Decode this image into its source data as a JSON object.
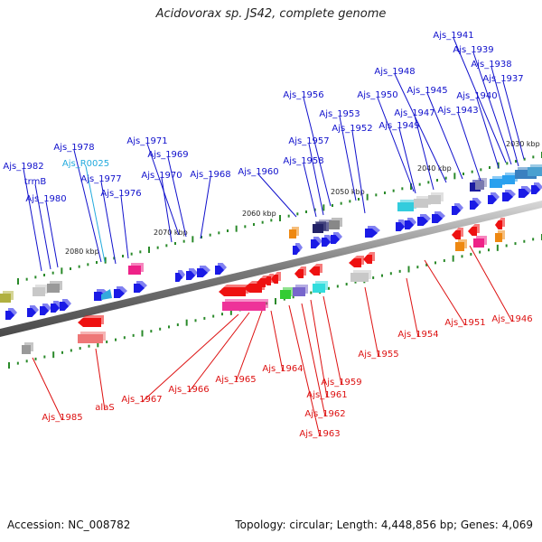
{
  "title": "Acidovorax sp. JS42, complete genome",
  "footer": {
    "accession": "Accession: NC_008782",
    "summary": "Topology: circular; Length: 4,448,856 bp; Genes: 4,069"
  },
  "colors": {
    "forward_label": "#1010cc",
    "reverse_label": "#dd1111",
    "rna_label": "#22aadd",
    "backbone": "#888888",
    "tick": "#2a8a2a"
  },
  "ruler": {
    "unit": "kbp",
    "ticks": [
      {
        "label": "2030 kbp"
      },
      {
        "label": "2040 kbp"
      },
      {
        "label": "2050 kbp"
      },
      {
        "label": "2060 kbp"
      },
      {
        "label": "2070 kbp"
      },
      {
        "label": "2080 kbp"
      }
    ]
  },
  "forward_labels": [
    "Ajs_1941",
    "Ajs_1939",
    "Ajs_1938",
    "Ajs_1937",
    "Ajs_1948",
    "Ajs_1945",
    "Ajs_1940",
    "Ajs_1956",
    "Ajs_1950",
    "Ajs_1947",
    "Ajs_1943",
    "Ajs_1953",
    "Ajs_1949",
    "Ajs_1952",
    "Ajs_1957",
    "Ajs_1958",
    "Ajs_1960",
    "Ajs_1971",
    "Ajs_1969",
    "Ajs_1970",
    "Ajs_1968",
    "Ajs_1978",
    "Ajs_1977",
    "Ajs_1976",
    "Ajs_1982",
    "trmB",
    "Ajs_1980"
  ],
  "rna_labels": [
    "Ajs_R0025"
  ],
  "reverse_labels": [
    "Ajs_1946",
    "Ajs_1951",
    "Ajs_1954",
    "Ajs_1955",
    "Ajs_1959",
    "Ajs_1961",
    "Ajs_1962",
    "Ajs_1963",
    "Ajs_1964",
    "Ajs_1965",
    "Ajs_1966",
    "Ajs_1967",
    "alaS",
    "Ajs_1985"
  ]
}
